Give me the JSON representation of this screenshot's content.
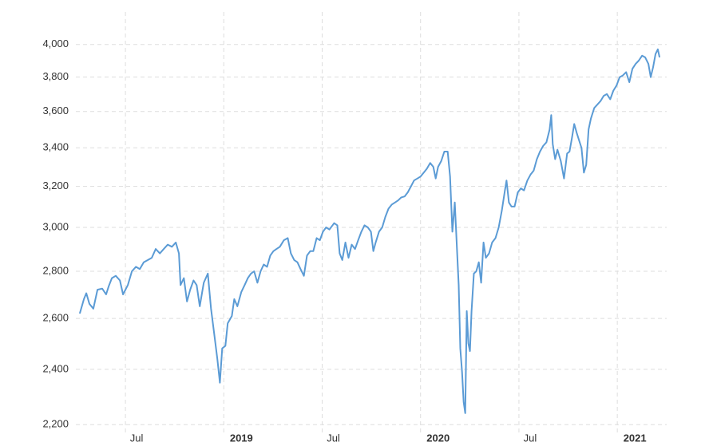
{
  "chart_data": {
    "type": "line",
    "log_scale": true,
    "grid": true,
    "x": [
      2018.268,
      2018.289,
      2018.301,
      2018.317,
      2018.337,
      2018.358,
      2018.382,
      2018.402,
      2018.415,
      2018.431,
      2018.451,
      2018.472,
      2018.488,
      2018.512,
      2018.533,
      2018.553,
      2018.573,
      2018.593,
      2018.614,
      2018.634,
      2018.654,
      2018.675,
      2018.695,
      2018.715,
      2018.736,
      2018.756,
      2018.772,
      2018.78,
      2018.797,
      2018.813,
      2018.829,
      2018.846,
      2018.862,
      2018.878,
      2018.898,
      2018.919,
      2018.935,
      2018.951,
      2018.967,
      2018.98,
      2018.992,
      2019.008,
      2019.02,
      2019.041,
      2019.053,
      2019.069,
      2019.089,
      2019.106,
      2019.122,
      2019.138,
      2019.154,
      2019.171,
      2019.187,
      2019.203,
      2019.22,
      2019.236,
      2019.252,
      2019.268,
      2019.285,
      2019.305,
      2019.325,
      2019.341,
      2019.358,
      2019.374,
      2019.39,
      2019.407,
      2019.423,
      2019.439,
      2019.455,
      2019.472,
      2019.488,
      2019.504,
      2019.52,
      2019.537,
      2019.561,
      2019.577,
      2019.589,
      2019.602,
      2019.618,
      2019.634,
      2019.65,
      2019.667,
      2019.683,
      2019.699,
      2019.715,
      2019.732,
      2019.748,
      2019.76,
      2019.772,
      2019.789,
      2019.805,
      2019.821,
      2019.837,
      2019.854,
      2019.87,
      2019.886,
      2019.902,
      2019.919,
      2019.935,
      2019.951,
      2019.967,
      2019.984,
      2020.0,
      2020.016,
      2020.032,
      2020.049,
      2020.065,
      2020.077,
      2020.089,
      2020.105,
      2020.121,
      2020.138,
      2020.15,
      2020.162,
      2020.174,
      2020.186,
      2020.194,
      2020.202,
      2020.211,
      2020.219,
      2020.227,
      2020.235,
      2020.243,
      2020.251,
      2020.259,
      2020.271,
      2020.283,
      2020.296,
      2020.308,
      2020.32,
      2020.332,
      2020.348,
      2020.364,
      2020.381,
      2020.397,
      2020.413,
      2020.429,
      2020.437,
      2020.449,
      2020.462,
      2020.478,
      2020.494,
      2020.51,
      2020.526,
      2020.543,
      2020.559,
      2020.575,
      2020.591,
      2020.607,
      2020.623,
      2020.64,
      2020.656,
      2020.664,
      2020.672,
      2020.684,
      2020.696,
      2020.713,
      2020.729,
      2020.745,
      2020.757,
      2020.769,
      2020.781,
      2020.794,
      2020.806,
      2020.818,
      2020.83,
      2020.842,
      2020.854,
      2020.866,
      2020.883,
      2020.899,
      2020.915,
      2020.931,
      2020.947,
      2020.964,
      2020.98,
      2020.996,
      2021.012,
      2021.028,
      2021.045,
      2021.061,
      2021.077,
      2021.093,
      2021.109,
      2021.126,
      2021.142,
      2021.158,
      2021.17,
      2021.182,
      2021.194,
      2021.206,
      2021.215
    ],
    "series": [
      {
        "color": "#5b9bd5",
        "values": [
          2620,
          2680,
          2705,
          2660,
          2640,
          2720,
          2725,
          2700,
          2735,
          2770,
          2780,
          2760,
          2700,
          2740,
          2800,
          2820,
          2810,
          2840,
          2850,
          2860,
          2900,
          2880,
          2900,
          2920,
          2910,
          2930,
          2880,
          2740,
          2770,
          2670,
          2720,
          2760,
          2740,
          2650,
          2750,
          2790,
          2640,
          2540,
          2440,
          2350,
          2480,
          2490,
          2580,
          2610,
          2680,
          2650,
          2710,
          2740,
          2770,
          2790,
          2800,
          2750,
          2800,
          2830,
          2820,
          2870,
          2890,
          2900,
          2910,
          2940,
          2950,
          2880,
          2850,
          2840,
          2810,
          2780,
          2870,
          2890,
          2890,
          2950,
          2940,
          2980,
          3000,
          2990,
          3020,
          3010,
          2880,
          2850,
          2930,
          2860,
          2920,
          2900,
          2940,
          2980,
          3010,
          3000,
          2980,
          2890,
          2930,
          2980,
          3000,
          3050,
          3090,
          3110,
          3120,
          3130,
          3145,
          3150,
          3170,
          3200,
          3230,
          3240,
          3250,
          3270,
          3290,
          3320,
          3300,
          3240,
          3300,
          3330,
          3380,
          3380,
          3250,
          2980,
          3120,
          2880,
          2740,
          2480,
          2390,
          2280,
          2240,
          2630,
          2500,
          2470,
          2630,
          2790,
          2800,
          2840,
          2750,
          2930,
          2860,
          2880,
          2930,
          2950,
          3000,
          3080,
          3180,
          3230,
          3120,
          3100,
          3100,
          3170,
          3190,
          3180,
          3230,
          3260,
          3280,
          3340,
          3380,
          3410,
          3430,
          3500,
          3580,
          3420,
          3340,
          3390,
          3330,
          3240,
          3370,
          3380,
          3450,
          3530,
          3480,
          3440,
          3400,
          3270,
          3310,
          3500,
          3560,
          3620,
          3640,
          3660,
          3690,
          3700,
          3670,
          3720,
          3750,
          3800,
          3810,
          3830,
          3770,
          3850,
          3880,
          3900,
          3930,
          3920,
          3880,
          3800,
          3860,
          3940,
          3970,
          3920
        ]
      }
    ],
    "xlim": [
      2018.248,
      2021.251
    ],
    "xticks": [
      {
        "value": 2018.5,
        "label": "Jul"
      },
      {
        "value": 2019,
        "label": "2019"
      },
      {
        "value": 2019.5,
        "label": "Jul"
      },
      {
        "value": 2020,
        "label": "2020"
      },
      {
        "value": 2020.5,
        "label": "Jul"
      },
      {
        "value": 2021,
        "label": "2021"
      }
    ],
    "ylim": [
      2165,
      4210
    ],
    "yticks": [
      {
        "value": 2200,
        "label": "2,200"
      },
      {
        "value": 2400,
        "label": "2,400"
      },
      {
        "value": 2600,
        "label": "2,600"
      },
      {
        "value": 2800,
        "label": "2,800"
      },
      {
        "value": 3000,
        "label": "3,000"
      },
      {
        "value": 3200,
        "label": "3,200"
      },
      {
        "value": 3400,
        "label": "3,400"
      },
      {
        "value": 3600,
        "label": "3,600"
      },
      {
        "value": 3800,
        "label": "3,800"
      },
      {
        "value": 4000,
        "label": "4,000"
      }
    ]
  }
}
